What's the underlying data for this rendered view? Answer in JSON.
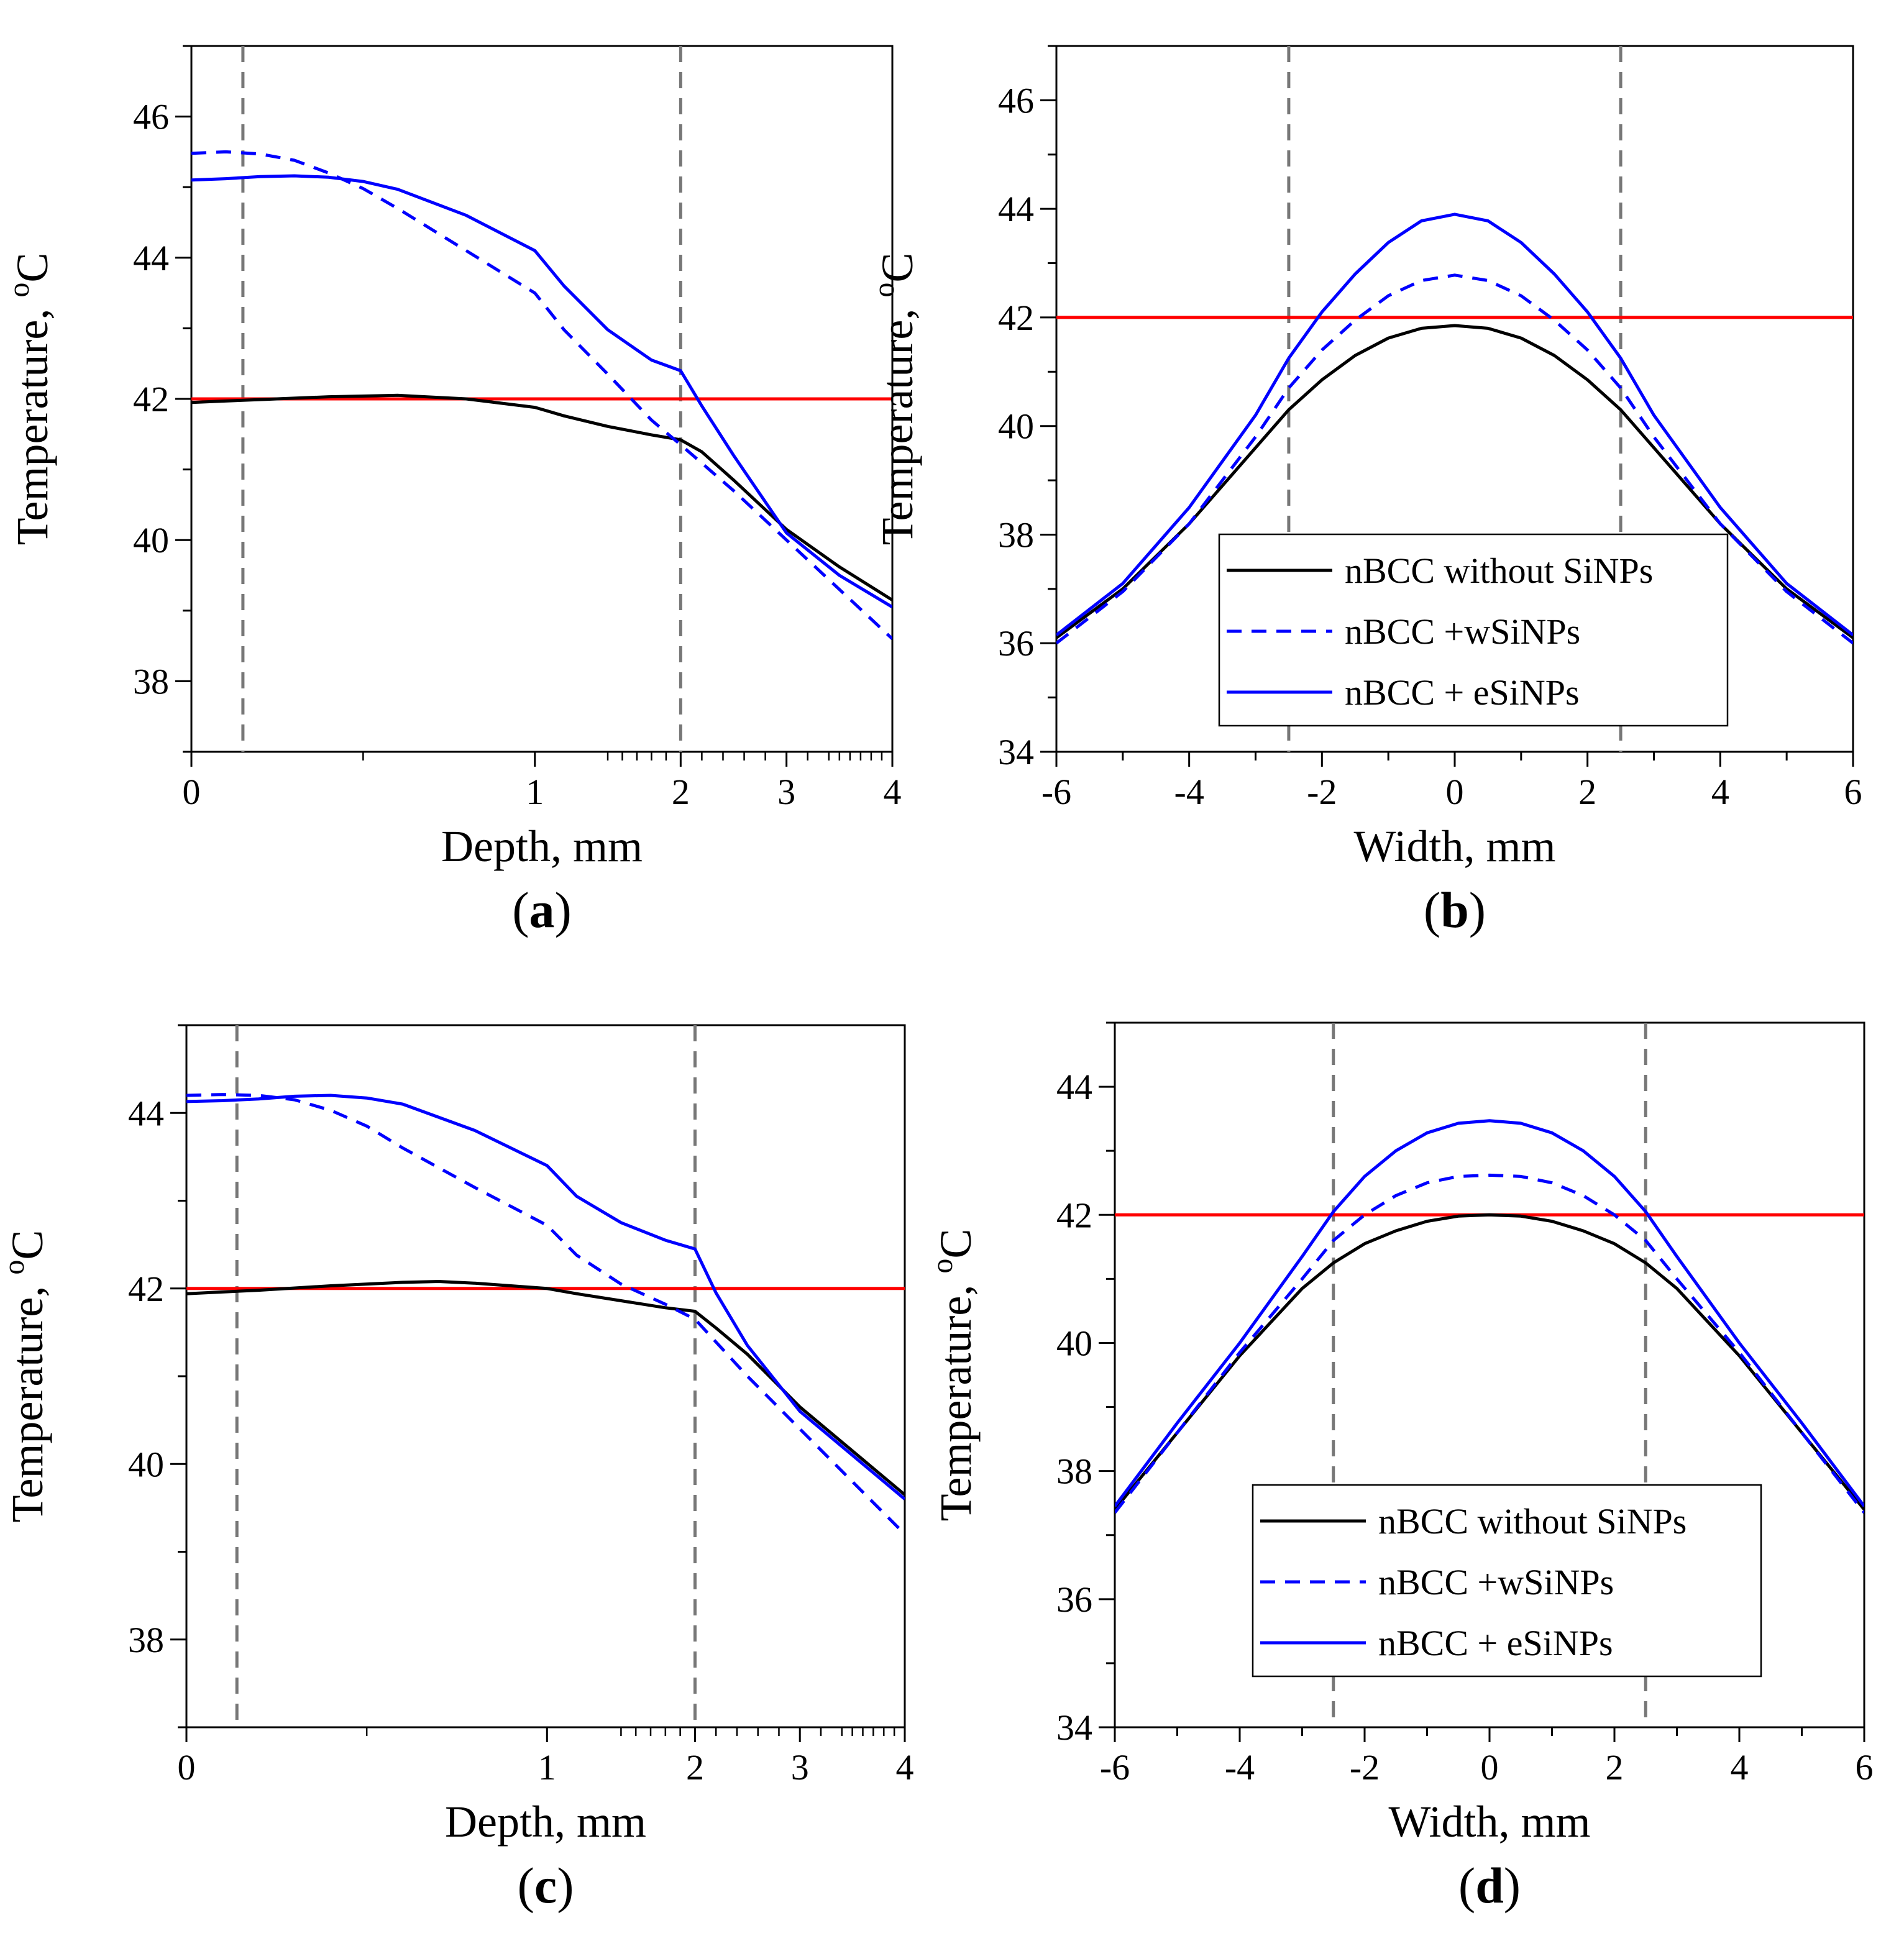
{
  "chart_data": [
    {
      "id": "a",
      "type": "line",
      "panel_label": "a",
      "xlabel": "Depth, mm",
      "ylabel": "Temperature, ",
      "ylabel_sup": "o",
      "ylabel_unit": "C",
      "x_scale": "piecewise",
      "x_breaks": [
        0,
        1,
        2,
        4
      ],
      "x_break_fractions": [
        0,
        0.49,
        0.698,
        1
      ],
      "xticks": [
        0,
        1,
        2,
        3,
        4
      ],
      "xlim": [
        0,
        4
      ],
      "ylim": [
        37,
        47
      ],
      "yticks": [
        38,
        40,
        42,
        44,
        46
      ],
      "ref_line": {
        "value": 42,
        "color": "#ff0000"
      },
      "vlines": [
        0.15,
        2.0
      ],
      "series": [
        {
          "name": "nBCC without SiNPs",
          "style": "solid",
          "color": "#000000",
          "x": [
            0,
            0.1,
            0.2,
            0.4,
            0.6,
            0.8,
            1.0,
            1.2,
            1.5,
            1.8,
            2.0,
            2.2,
            2.5,
            3.0,
            3.5,
            4.0
          ],
          "y": [
            41.95,
            41.97,
            41.99,
            42.03,
            42.05,
            42.0,
            41.88,
            41.76,
            41.61,
            41.49,
            41.42,
            41.25,
            40.85,
            40.15,
            39.62,
            39.15
          ]
        },
        {
          "name": "nBCC +wSiNPs",
          "style": "dashed",
          "color": "#0000ff",
          "x": [
            0,
            0.1,
            0.2,
            0.3,
            0.4,
            0.5,
            0.6,
            0.8,
            1.0,
            1.2,
            1.5,
            1.8,
            2.0,
            2.5,
            3.0,
            3.5,
            4.0
          ],
          "y": [
            45.48,
            45.5,
            45.47,
            45.38,
            45.2,
            44.98,
            44.7,
            44.1,
            43.5,
            42.98,
            42.35,
            41.7,
            41.35,
            40.7,
            40.0,
            39.3,
            38.6
          ]
        },
        {
          "name": "nBCC + eSiNPs",
          "style": "solid",
          "color": "#0000ff",
          "x": [
            0,
            0.1,
            0.2,
            0.3,
            0.4,
            0.5,
            0.6,
            0.8,
            1.0,
            1.2,
            1.5,
            1.8,
            2.0,
            2.2,
            2.5,
            3.0,
            3.5,
            4.0
          ],
          "y": [
            45.1,
            45.12,
            45.15,
            45.16,
            45.14,
            45.08,
            44.97,
            44.6,
            44.1,
            43.6,
            42.98,
            42.55,
            42.4,
            41.9,
            41.2,
            40.1,
            39.5,
            39.05
          ]
        }
      ]
    },
    {
      "id": "b",
      "type": "line",
      "panel_label": "b",
      "xlabel": "Width, mm",
      "ylabel": "Temperature, ",
      "ylabel_sup": "o",
      "ylabel_unit": "C",
      "xlim": [
        -6,
        6
      ],
      "xticks": [
        -6,
        -4,
        -2,
        0,
        2,
        4,
        6
      ],
      "ylim": [
        34,
        47
      ],
      "yticks": [
        34,
        36,
        38,
        40,
        42,
        44,
        46
      ],
      "ref_line": {
        "value": 42,
        "color": "#ff0000"
      },
      "vlines": [
        -2.5,
        2.5
      ],
      "legend": {
        "position": "lower-center"
      },
      "series": [
        {
          "name": "nBCC without SiNPs",
          "style": "solid",
          "color": "#000000",
          "x": [
            -6,
            -5,
            -4,
            -3,
            -2.5,
            -2,
            -1.5,
            -1,
            -0.5,
            0,
            0.5,
            1,
            1.5,
            2,
            2.5,
            3,
            4,
            5,
            6
          ],
          "y": [
            36.1,
            37.0,
            38.2,
            39.6,
            40.3,
            40.85,
            41.3,
            41.62,
            41.8,
            41.85,
            41.8,
            41.62,
            41.3,
            40.85,
            40.3,
            39.6,
            38.2,
            37.0,
            36.1
          ]
        },
        {
          "name": "nBCC +wSiNPs",
          "style": "dashed",
          "color": "#0000ff",
          "x": [
            -6,
            -5,
            -4,
            -3,
            -2.5,
            -2,
            -1.5,
            -1,
            -0.5,
            0,
            0.5,
            1,
            1.5,
            2,
            2.5,
            3,
            4,
            5,
            6
          ],
          "y": [
            36.0,
            36.95,
            38.2,
            39.8,
            40.7,
            41.4,
            41.95,
            42.4,
            42.68,
            42.78,
            42.68,
            42.4,
            41.95,
            41.4,
            40.7,
            39.8,
            38.2,
            36.95,
            36.0
          ]
        },
        {
          "name": "nBCC + eSiNPs",
          "style": "solid",
          "color": "#0000ff",
          "x": [
            -6,
            -5,
            -4,
            -3,
            -2.5,
            -2,
            -1.5,
            -1,
            -0.5,
            0,
            0.5,
            1,
            1.5,
            2,
            2.5,
            3,
            4,
            5,
            6
          ],
          "y": [
            36.15,
            37.1,
            38.5,
            40.2,
            41.25,
            42.1,
            42.8,
            43.38,
            43.78,
            43.9,
            43.78,
            43.38,
            42.8,
            42.1,
            41.25,
            40.2,
            38.5,
            37.1,
            36.15
          ]
        }
      ]
    },
    {
      "id": "c",
      "type": "line",
      "panel_label": "c",
      "xlabel": "Depth, mm",
      "ylabel": "Temperature, ",
      "ylabel_sup": "o",
      "ylabel_unit": "C",
      "x_scale": "piecewise",
      "x_breaks": [
        0,
        1,
        2,
        4
      ],
      "x_break_fractions": [
        0,
        0.502,
        0.708,
        1
      ],
      "xticks": [
        0,
        1,
        2,
        3,
        4
      ],
      "xlim": [
        0,
        4
      ],
      "ylim": [
        37,
        45
      ],
      "yticks": [
        38,
        40,
        42,
        44
      ],
      "ref_line": {
        "value": 42,
        "color": "#ff0000"
      },
      "vlines": [
        0.14,
        2.0
      ],
      "series": [
        {
          "name": "nBCC without SiNPs",
          "style": "solid",
          "color": "#000000",
          "x": [
            0,
            0.1,
            0.2,
            0.4,
            0.6,
            0.7,
            0.8,
            1.0,
            1.2,
            1.5,
            1.8,
            2.0,
            2.2,
            2.5,
            3.0,
            3.5,
            4.0
          ],
          "y": [
            41.94,
            41.96,
            41.98,
            42.03,
            42.07,
            42.08,
            42.06,
            42.0,
            41.94,
            41.86,
            41.78,
            41.74,
            41.55,
            41.25,
            40.65,
            40.15,
            39.65
          ]
        },
        {
          "name": "nBCC +wSiNPs",
          "style": "dashed",
          "color": "#0000ff",
          "x": [
            0,
            0.1,
            0.2,
            0.3,
            0.4,
            0.5,
            0.6,
            0.8,
            1.0,
            1.2,
            1.5,
            1.8,
            2.0,
            2.5,
            3.0,
            3.5,
            4.0
          ],
          "y": [
            44.2,
            44.21,
            44.2,
            44.15,
            44.03,
            43.85,
            43.6,
            43.15,
            42.72,
            42.38,
            42.05,
            41.82,
            41.65,
            41.0,
            40.4,
            39.8,
            39.2
          ]
        },
        {
          "name": "nBCC + eSiNPs",
          "style": "solid",
          "color": "#0000ff",
          "x": [
            0,
            0.1,
            0.2,
            0.3,
            0.4,
            0.5,
            0.6,
            0.8,
            1.0,
            1.2,
            1.5,
            1.8,
            2.0,
            2.2,
            2.5,
            3.0,
            3.5,
            4.0
          ],
          "y": [
            44.13,
            44.14,
            44.16,
            44.19,
            44.2,
            44.17,
            44.1,
            43.8,
            43.4,
            43.05,
            42.75,
            42.55,
            42.45,
            41.95,
            41.35,
            40.6,
            40.1,
            39.6
          ]
        }
      ]
    },
    {
      "id": "d",
      "type": "line",
      "panel_label": "d",
      "xlabel": "Width, mm",
      "ylabel": "Temperature, ",
      "ylabel_sup": "o",
      "ylabel_unit": "C",
      "xlim": [
        -6,
        6
      ],
      "xticks": [
        -6,
        -4,
        -2,
        0,
        2,
        4,
        6
      ],
      "ylim": [
        34,
        45
      ],
      "yticks": [
        34,
        36,
        38,
        40,
        42,
        44
      ],
      "ref_line": {
        "value": 42,
        "color": "#ff0000"
      },
      "vlines": [
        -2.5,
        2.5
      ],
      "legend": {
        "position": "lower-center"
      },
      "series": [
        {
          "name": "nBCC without SiNPs",
          "style": "solid",
          "color": "#000000",
          "x": [
            -6,
            -5,
            -4,
            -3,
            -2.5,
            -2,
            -1.5,
            -1,
            -0.5,
            0,
            0.5,
            1,
            1.5,
            2,
            2.5,
            3,
            4,
            5,
            6
          ],
          "y": [
            37.4,
            38.6,
            39.8,
            40.85,
            41.25,
            41.55,
            41.75,
            41.9,
            41.98,
            42.0,
            41.98,
            41.9,
            41.75,
            41.55,
            41.25,
            40.85,
            39.8,
            38.6,
            37.4
          ]
        },
        {
          "name": "nBCC +wSiNPs",
          "style": "dashed",
          "color": "#0000ff",
          "x": [
            -6,
            -5,
            -4,
            -3,
            -2.5,
            -2,
            -1.5,
            -1,
            -0.5,
            0,
            0.5,
            1,
            1.5,
            2,
            2.5,
            3,
            4,
            5,
            6
          ],
          "y": [
            37.35,
            38.6,
            39.85,
            41.0,
            41.6,
            42.0,
            42.3,
            42.5,
            42.6,
            42.62,
            42.6,
            42.5,
            42.3,
            42.0,
            41.6,
            41.0,
            39.85,
            38.6,
            37.35
          ]
        },
        {
          "name": "nBCC + eSiNPs",
          "style": "solid",
          "color": "#0000ff",
          "x": [
            -6,
            -5,
            -4,
            -3,
            -2.5,
            -2,
            -1.5,
            -1,
            -0.5,
            0,
            0.5,
            1,
            1.5,
            2,
            2.5,
            3,
            4,
            5,
            6
          ],
          "y": [
            37.45,
            38.75,
            40.0,
            41.35,
            42.05,
            42.6,
            43.0,
            43.28,
            43.43,
            43.47,
            43.43,
            43.28,
            43.0,
            42.6,
            42.05,
            41.35,
            40.0,
            38.75,
            37.45
          ]
        }
      ]
    }
  ]
}
